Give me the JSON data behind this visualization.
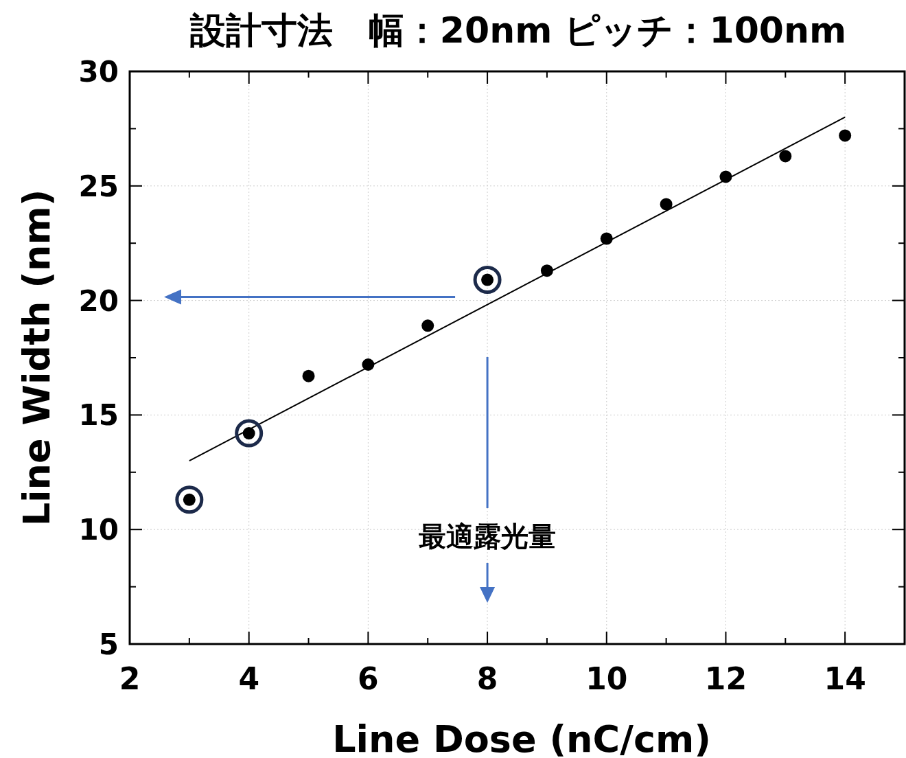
{
  "chart_data": {
    "type": "scatter",
    "title": "設計寸法　幅：20nm ピッチ：100nm",
    "xlabel": "Line Dose (nC/cm)",
    "ylabel": "Line Width (nm)",
    "xlim": [
      2,
      15
    ],
    "ylim": [
      5,
      30
    ],
    "xticks": [
      2,
      {
        "value": 3,
        "label": null
      },
      4,
      {
        "value": 5,
        "label": null
      },
      6,
      {
        "value": 7,
        "label": null
      },
      8,
      {
        "value": 9,
        "label": null
      },
      10,
      {
        "value": 11,
        "label": null
      },
      12,
      {
        "value": 13,
        "label": null
      },
      14,
      {
        "value": 15,
        "label": null
      }
    ],
    "yticks": [
      5,
      {
        "value": 7.5,
        "label": null
      },
      10,
      {
        "value": 12.5,
        "label": null
      },
      15,
      {
        "value": 17.5,
        "label": null
      },
      20,
      {
        "value": 22.5,
        "label": null
      },
      25,
      {
        "value": 27.5,
        "label": null
      },
      30
    ],
    "grid": true,
    "series": [
      {
        "marker": "circle",
        "color": "#000000",
        "x": [
          3,
          4,
          5,
          6,
          7,
          8,
          9,
          10,
          11,
          12,
          13,
          14
        ],
        "values": [
          11.3,
          14.2,
          16.7,
          17.2,
          18.9,
          20.9,
          21.3,
          22.7,
          24.2,
          25.4,
          26.3,
          27.2
        ]
      },
      {
        "type": "line",
        "color": "#000000",
        "line_style": "solid",
        "x": [
          3,
          14
        ],
        "values": [
          13.0,
          28.0
        ]
      },
      {
        "type": "scatter",
        "marker": "circle",
        "color": "#1c2a4a",
        "x": [
          3,
          4,
          8
        ],
        "values": [
          11.3,
          14.2,
          20.9
        ]
      }
    ],
    "annotations": [
      "最適露光量"
    ]
  }
}
